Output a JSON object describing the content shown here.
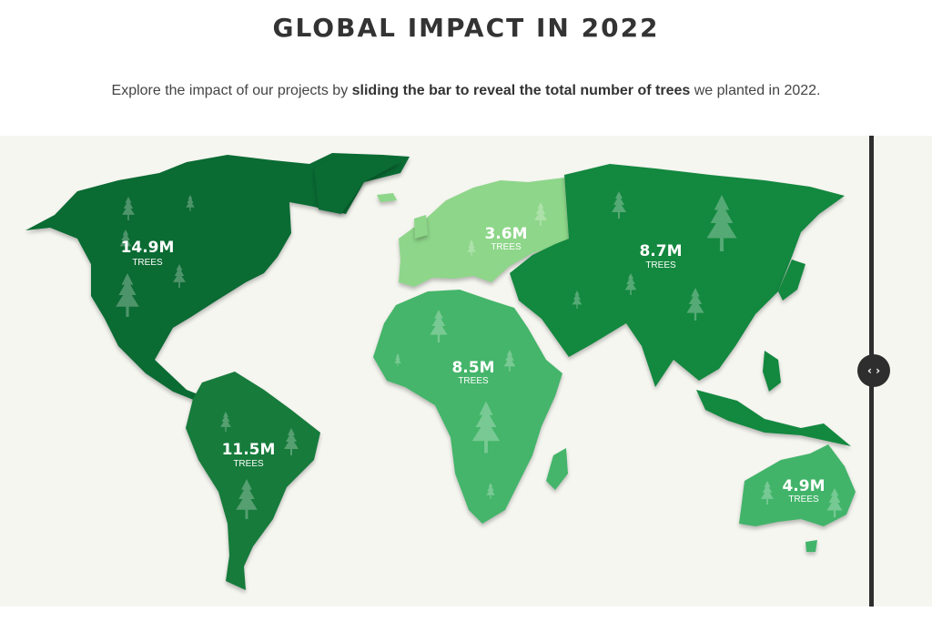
{
  "header": {
    "title": "GLOBAL IMPACT IN 2022",
    "intro_prefix": "Explore the impact of our projects by ",
    "intro_bold": "sliding the bar to reveal the total number of trees",
    "intro_suffix": " we planted in 2022."
  },
  "map": {
    "background": "#f6f6f1",
    "regions": [
      {
        "name": "North America",
        "value": "14.9M",
        "unit": "TREES",
        "color": "#0a6b33"
      },
      {
        "name": "South America",
        "value": "11.5M",
        "unit": "TREES",
        "color": "#167b3b"
      },
      {
        "name": "Europe",
        "value": "3.6M",
        "unit": "TREES",
        "color": "#8ed68a"
      },
      {
        "name": "Africa",
        "value": "8.5M",
        "unit": "TREES",
        "color": "#44b56a"
      },
      {
        "name": "Asia",
        "value": "8.7M",
        "unit": "TREES",
        "color": "#13883f"
      },
      {
        "name": "Oceania",
        "value": "4.9M",
        "unit": "TREES",
        "color": "#42b46a"
      }
    ]
  },
  "slider": {
    "handle_icon": "left-right-arrows-icon",
    "handle_glyph": "‹ ›",
    "color": "#2e2e2e"
  }
}
